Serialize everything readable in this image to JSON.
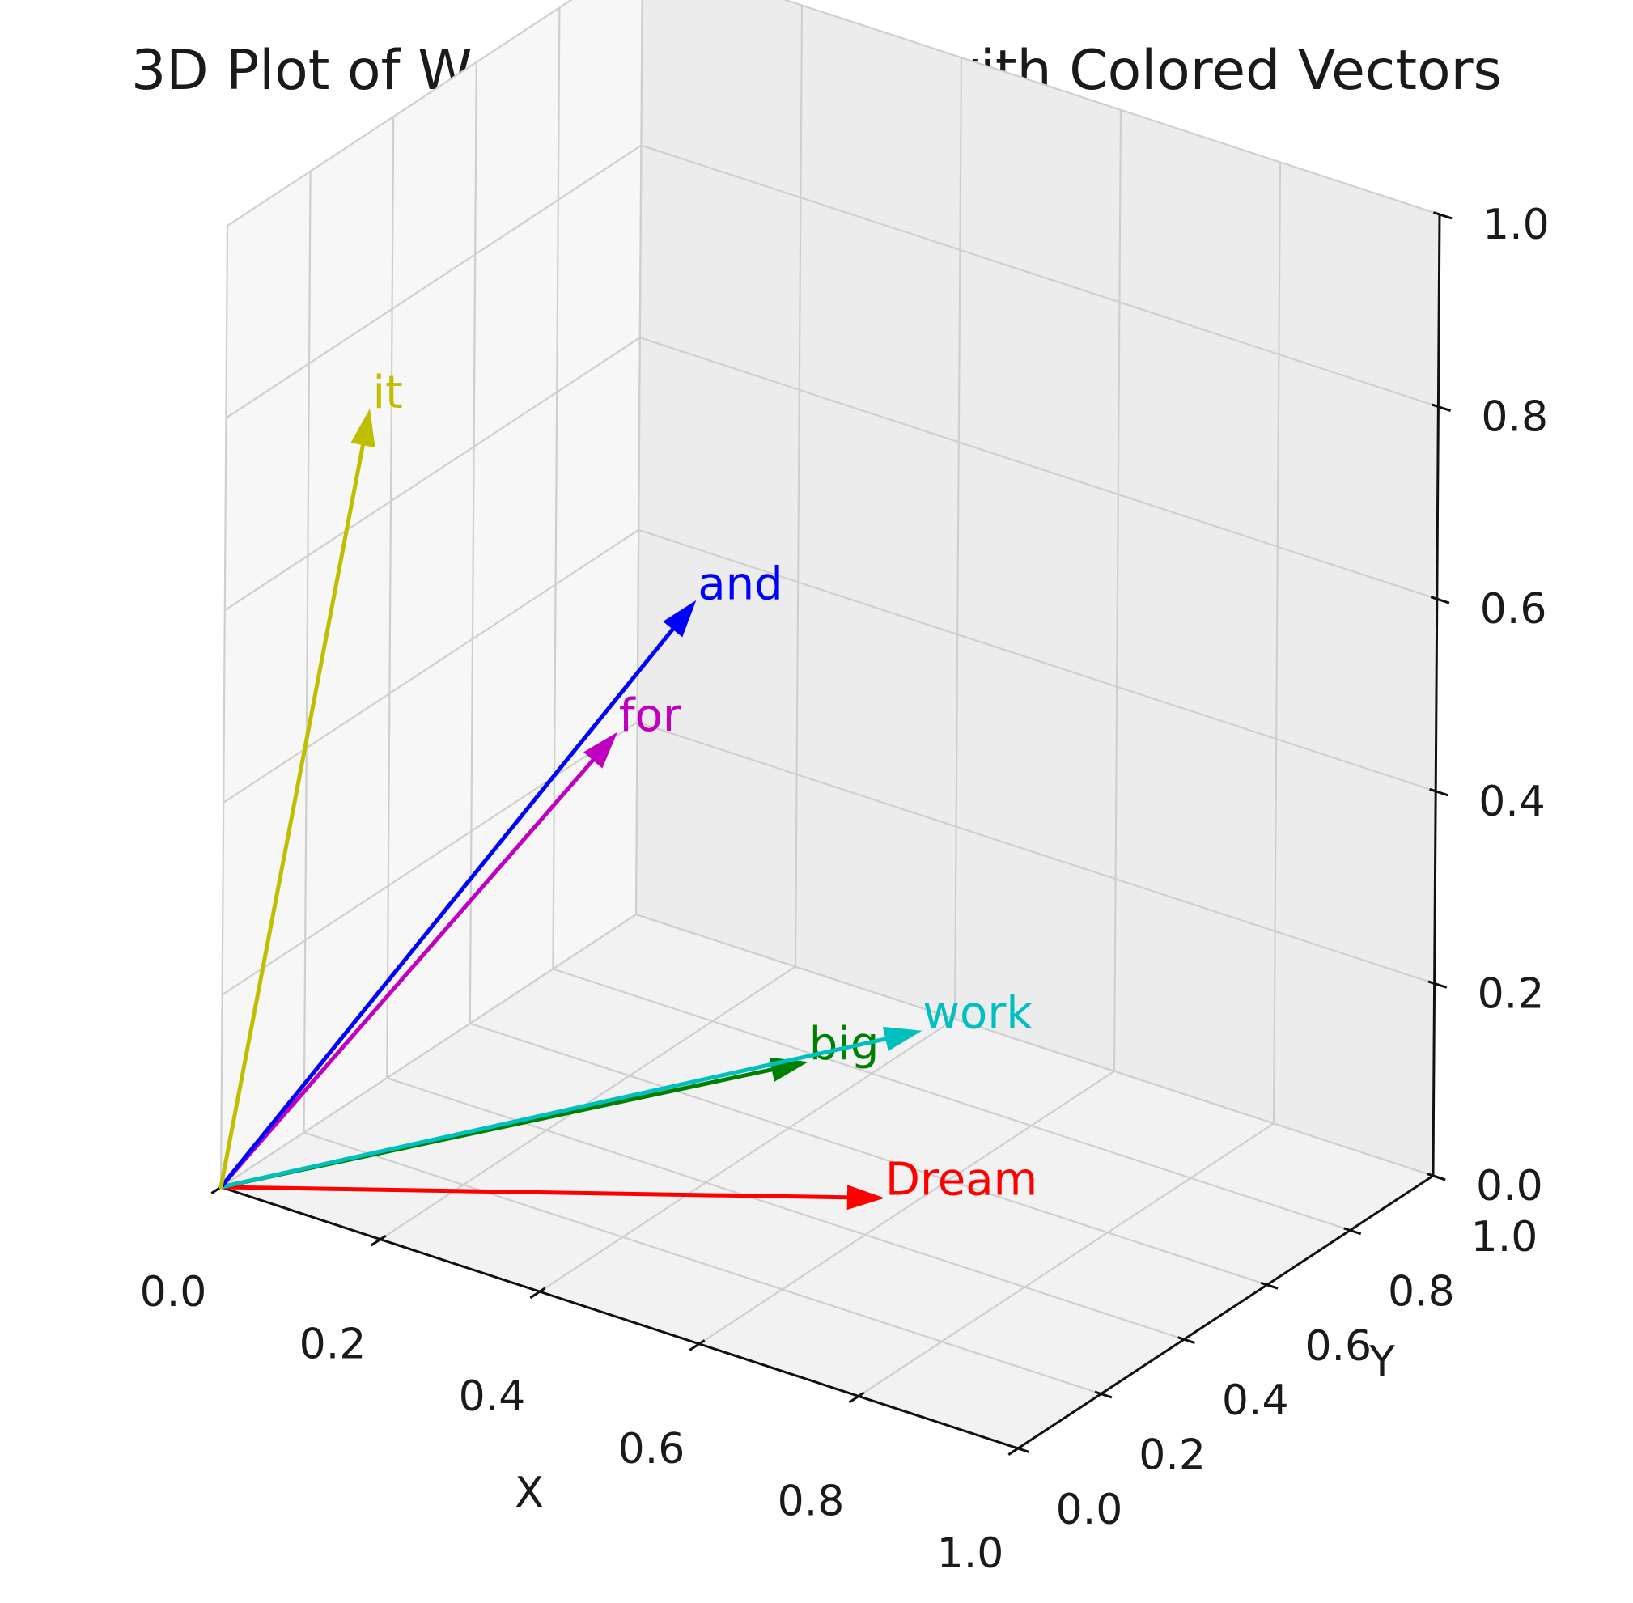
{
  "chart_data": {
    "type": "3d-vector",
    "title": "3D Plot of Word Embeddings with Colored Vectors",
    "xlabel": "X",
    "ylabel": "Y",
    "zlabel": "",
    "xlim": [
      0,
      1
    ],
    "ylim": [
      0,
      1
    ],
    "zlim": [
      0,
      1
    ],
    "xticks": [
      "0.0",
      "0.2",
      "0.4",
      "0.6",
      "0.8",
      "1.0"
    ],
    "yticks": [
      "0.0",
      "0.2",
      "0.4",
      "0.6",
      "0.8",
      "1.0"
    ],
    "zticks": [
      "0.0",
      "0.2",
      "0.4",
      "0.6",
      "0.8",
      "1.0"
    ],
    "grid": true,
    "origin": [
      0,
      0,
      0
    ],
    "series": [
      {
        "name": "Dream",
        "color": "#ff0000",
        "vector": [
          0.75,
          0.15,
          0.15
        ]
      },
      {
        "name": "big",
        "color": "#008000",
        "vector": [
          0.55,
          0.35,
          0.18
        ]
      },
      {
        "name": "work",
        "color": "#00bfbf",
        "vector": [
          0.63,
          0.47,
          0.2
        ]
      },
      {
        "name": "for",
        "color": "#bf00bf",
        "vector": [
          0.18,
          0.6,
          0.35
        ]
      },
      {
        "name": "and",
        "color": "#0000ff",
        "vector": [
          0.2,
          0.75,
          0.45
        ]
      },
      {
        "name": "it",
        "color": "#bfbf00",
        "vector": [
          0.05,
          0.25,
          0.75
        ]
      }
    ]
  }
}
